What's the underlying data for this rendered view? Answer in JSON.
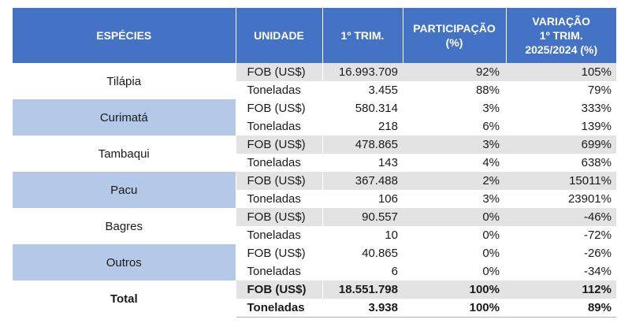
{
  "header": {
    "species": "ESPÉCIES",
    "unit": "UNIDADE",
    "q1": "1º TRIM.",
    "share_line1": "PARTICIPAÇÃO",
    "share_line2": "(%)",
    "var_line1": "VARIAÇÃO",
    "var_line2": "1º TRIM.",
    "var_line3": "2025/2024 (%)"
  },
  "rows": [
    {
      "species": "Tilápia",
      "fob": {
        "unit": "FOB (US$)",
        "value": "16.993.709",
        "share": "92%",
        "change": "105%"
      },
      "ton": {
        "unit": "Toneladas",
        "value": "3.455",
        "share": "88%",
        "change": "79%"
      }
    },
    {
      "species": "Curimatá",
      "fob": {
        "unit": "FOB (US$)",
        "value": "580.314",
        "share": "3%",
        "change": "333%"
      },
      "ton": {
        "unit": "Toneladas",
        "value": "218",
        "share": "6%",
        "change": "139%"
      }
    },
    {
      "species": "Tambaqui",
      "fob": {
        "unit": "FOB (US$)",
        "value": "478.865",
        "share": "3%",
        "change": "699%"
      },
      "ton": {
        "unit": "Toneladas",
        "value": "143",
        "share": "4%",
        "change": "638%"
      }
    },
    {
      "species": "Pacu",
      "fob": {
        "unit": "FOB (US$)",
        "value": "367.488",
        "share": "2%",
        "change": "15011%"
      },
      "ton": {
        "unit": "Toneladas",
        "value": "106",
        "share": "3%",
        "change": "23901%"
      }
    },
    {
      "species": "Bagres",
      "fob": {
        "unit": "FOB (US$)",
        "value": "90.557",
        "share": "0%",
        "change": "-46%"
      },
      "ton": {
        "unit": "Toneladas",
        "value": "10",
        "share": "0%",
        "change": "-72%"
      }
    },
    {
      "species": "Outros",
      "fob": {
        "unit": "FOB (US$)",
        "value": "40.865",
        "share": "0%",
        "change": "-26%"
      },
      "ton": {
        "unit": "Toneladas",
        "value": "6",
        "share": "0%",
        "change": "-34%"
      }
    },
    {
      "species": "Total",
      "fob": {
        "unit": "FOB (US$)",
        "value": "18.551.798",
        "share": "100%",
        "change": "112%"
      },
      "ton": {
        "unit": "Toneladas",
        "value": "3.938",
        "share": "100%",
        "change": "89%"
      }
    }
  ],
  "colors": {
    "header_bg": "#4472c4",
    "species_band": "#b4c8e8",
    "value_band": "#e3e3e3"
  }
}
